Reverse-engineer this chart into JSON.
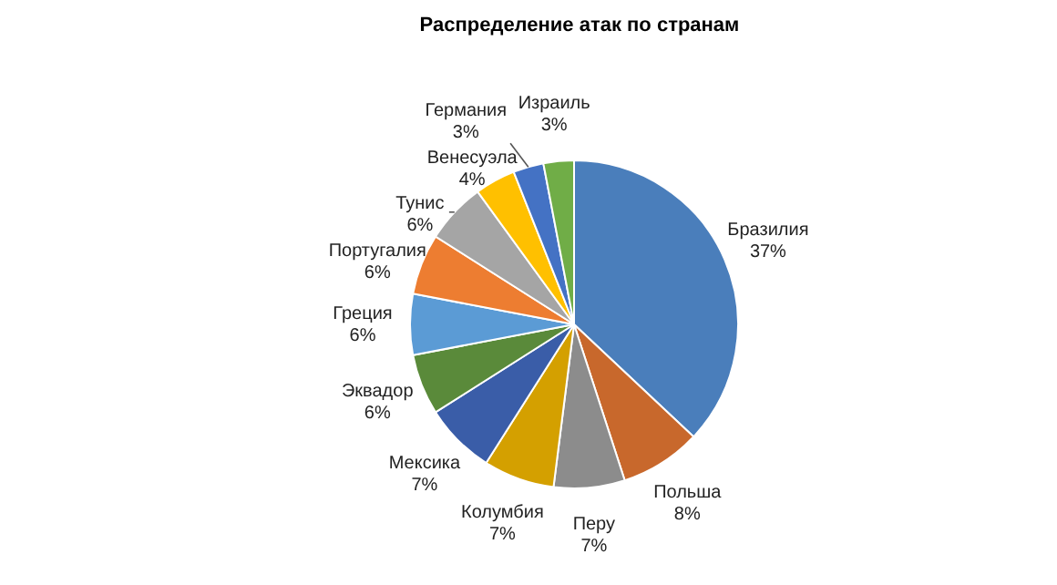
{
  "chart_data": {
    "type": "pie",
    "title": "Распределение атак по странам",
    "categories": [
      "Бразилия",
      "Польша",
      "Перу",
      "Колумбия",
      "Мексика",
      "Эквадор",
      "Греция",
      "Португалия",
      "Тунис",
      "Венесуэла",
      "Германия",
      "Израиль"
    ],
    "values": [
      37,
      8,
      7,
      7,
      7,
      6,
      6,
      6,
      6,
      4,
      3,
      3
    ],
    "value_labels": [
      "37%",
      "8%",
      "7%",
      "7%",
      "7%",
      "6%",
      "6%",
      "6%",
      "6%",
      "4%",
      "3%",
      "3%"
    ],
    "colors": [
      "#4a7ebb",
      "#c8682c",
      "#8c8c8c",
      "#d4a000",
      "#3a5da8",
      "#5a8a3a",
      "#5b9bd5",
      "#ed7d31",
      "#a5a5a5",
      "#ffc000",
      "#4472c4",
      "#70ad47"
    ]
  }
}
